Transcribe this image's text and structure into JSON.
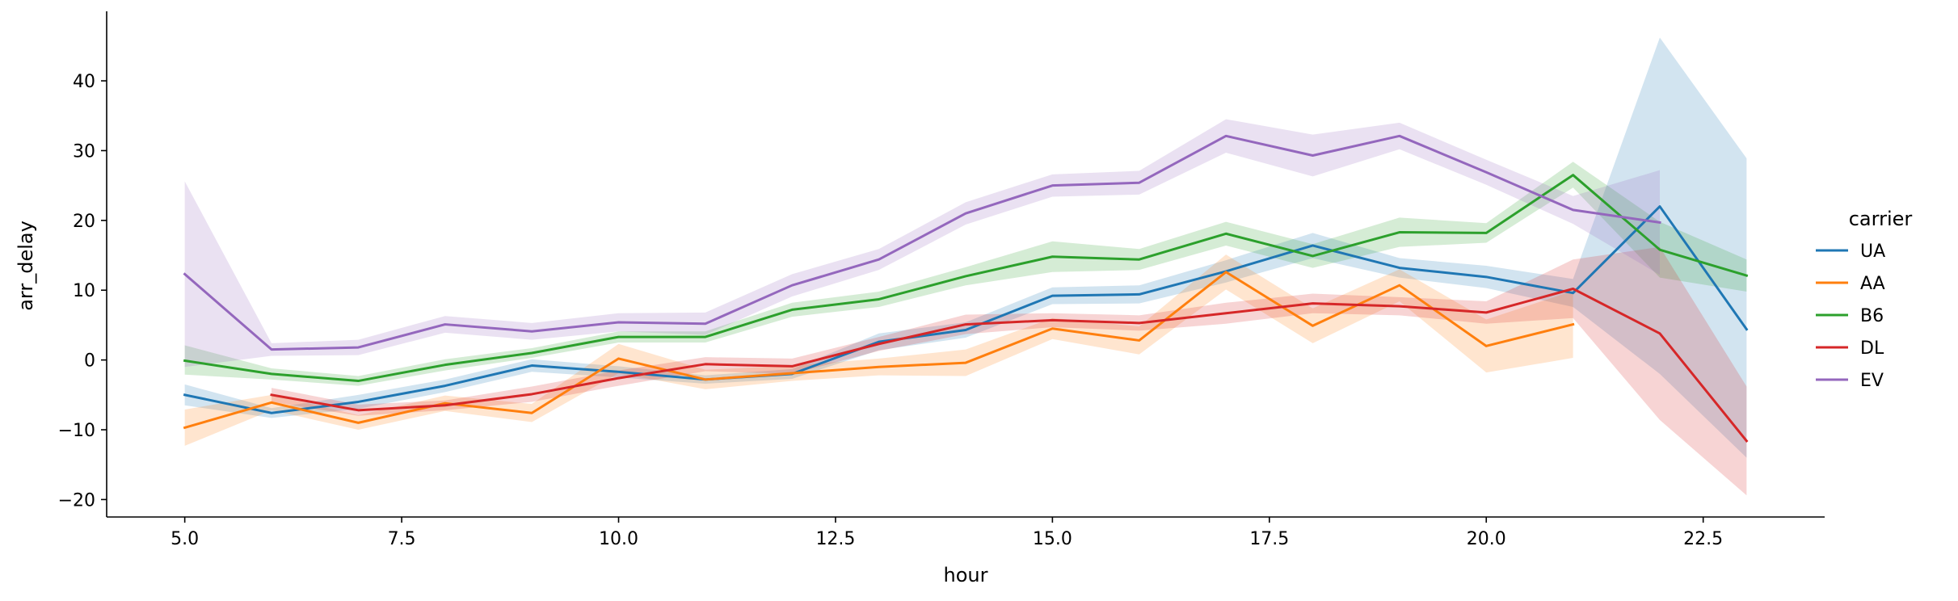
{
  "chart_data": {
    "type": "line",
    "xlabel": "hour",
    "ylabel": "arr_delay",
    "xlim": [
      4.1,
      23.9
    ],
    "ylim": [
      -22.5,
      49.5
    ],
    "x_ticks": [
      5.0,
      7.5,
      10.0,
      12.5,
      15.0,
      17.5,
      20.0,
      22.5
    ],
    "x_tick_labels": [
      "5.0",
      "7.5",
      "10.0",
      "12.5",
      "15.0",
      "17.5",
      "20.0",
      "22.5"
    ],
    "y_ticks": [
      -20,
      -10,
      0,
      10,
      20,
      30,
      40
    ],
    "y_tick_labels": [
      "−20",
      "−10",
      "0",
      "10",
      "20",
      "30",
      "40"
    ],
    "grid": false,
    "legend": {
      "title": "carrier",
      "placement": "right"
    },
    "series": [
      {
        "name": "UA",
        "color": "#1f77b4",
        "x": [
          5,
          6,
          7,
          8,
          9,
          10,
          11,
          12,
          13,
          14,
          15,
          16,
          17,
          18,
          19,
          20,
          21,
          22,
          23
        ],
        "y": [
          -5,
          -7.6,
          -6,
          -3.7,
          -0.8,
          -1.7,
          -2.8,
          -2,
          2.6,
          4.3,
          9.2,
          9.4,
          12.7,
          16.4,
          13.2,
          11.9,
          9.6,
          22,
          4.4
        ],
        "lower": [
          -6.5,
          -8.3,
          -7.0,
          -4.6,
          -1.7,
          -2.5,
          -3.4,
          -2.7,
          1.4,
          3.2,
          8.0,
          8.1,
          11.1,
          14.6,
          11.8,
          10.3,
          7.6,
          -2.0,
          -14.0
        ],
        "upper": [
          -3.5,
          -6.9,
          -5.0,
          -2.8,
          0.1,
          -0.9,
          -2.2,
          -1.3,
          3.8,
          5.4,
          10.4,
          10.7,
          14.3,
          18.2,
          14.6,
          13.5,
          11.6,
          46.2,
          28.9
        ]
      },
      {
        "name": "AA",
        "color": "#ff7f0e",
        "x": [
          5,
          6,
          7,
          8,
          9,
          10,
          11,
          12,
          13,
          14,
          15,
          16,
          17,
          18,
          19,
          20,
          21
        ],
        "y": [
          -9.7,
          -6.1,
          -9.0,
          -6.2,
          -7.6,
          0.2,
          -2.8,
          -1.9,
          -1.0,
          -0.4,
          4.5,
          2.8,
          12.6,
          4.9,
          10.7,
          2.0,
          5.1
        ],
        "lower": [
          -12.3,
          -7.2,
          -10.0,
          -7.3,
          -8.9,
          -1.9,
          -4.2,
          -3.0,
          -2.2,
          -2.3,
          3.0,
          0.8,
          10.1,
          2.4,
          8.4,
          -1.8,
          0.3
        ],
        "upper": [
          -7.1,
          -5.0,
          -7.9,
          -5.1,
          -6.3,
          2.3,
          -1.4,
          -0.8,
          0.2,
          1.5,
          6.0,
          4.8,
          15.1,
          7.4,
          13.0,
          5.8,
          9.9
        ]
      },
      {
        "name": "B6",
        "color": "#2ca02c",
        "x": [
          5,
          6,
          7,
          8,
          9,
          10,
          11,
          12,
          13,
          14,
          15,
          16,
          17,
          18,
          19,
          20,
          21,
          22,
          23
        ],
        "y": [
          -0.1,
          -2.0,
          -3.0,
          -0.7,
          1.0,
          3.3,
          3.3,
          7.2,
          8.7,
          12.0,
          14.8,
          14.4,
          18.1,
          14.9,
          18.3,
          18.2,
          26.5,
          15.8,
          12.1
        ],
        "lower": [
          -2.1,
          -2.8,
          -3.7,
          -1.5,
          0.3,
          2.5,
          2.5,
          6.2,
          7.6,
          10.7,
          12.6,
          12.9,
          16.4,
          13.2,
          16.2,
          16.8,
          24.7,
          11.8,
          9.8
        ],
        "upper": [
          2.1,
          -1.2,
          -2.3,
          0.1,
          1.7,
          4.1,
          4.1,
          8.2,
          9.8,
          13.3,
          17.0,
          15.9,
          19.8,
          16.6,
          20.4,
          19.6,
          28.4,
          19.8,
          14.4
        ]
      },
      {
        "name": "DL",
        "color": "#d62728",
        "x": [
          6,
          7,
          8,
          9,
          10,
          11,
          12,
          13,
          14,
          15,
          16,
          17,
          18,
          19,
          20,
          21,
          22,
          23
        ],
        "y": [
          -5.0,
          -7.2,
          -6.5,
          -4.9,
          -2.6,
          -0.6,
          -0.9,
          2.3,
          5.1,
          5.7,
          5.3,
          6.7,
          8.1,
          7.7,
          6.8,
          10.2,
          3.8,
          -11.6
        ],
        "lower": [
          -6.0,
          -8.0,
          -7.2,
          -6.0,
          -3.7,
          -1.6,
          -2.0,
          1.3,
          3.7,
          4.7,
          4.2,
          5.2,
          6.7,
          6.4,
          5.2,
          6.0,
          -8.6,
          -19.4
        ],
        "upper": [
          -4.0,
          -6.4,
          -5.8,
          -3.8,
          -1.5,
          0.4,
          0.2,
          3.3,
          6.5,
          6.7,
          6.4,
          8.2,
          9.5,
          9.0,
          8.4,
          14.4,
          16.2,
          -3.8
        ]
      },
      {
        "name": "EV",
        "color": "#9467bd",
        "x": [
          5,
          6,
          7,
          8,
          9,
          10,
          11,
          12,
          13,
          14,
          15,
          16,
          17,
          18,
          19,
          20,
          21,
          22
        ],
        "y": [
          12.3,
          1.5,
          1.8,
          5.1,
          4.1,
          5.4,
          5.2,
          10.7,
          14.4,
          21.0,
          25.0,
          25.4,
          32.1,
          29.3,
          32.1,
          26.9,
          21.5,
          19.7
        ],
        "lower": [
          -1.0,
          0.6,
          0.7,
          3.9,
          2.9,
          4.1,
          3.6,
          9.1,
          12.9,
          19.4,
          23.4,
          23.7,
          29.7,
          26.3,
          30.2,
          25.1,
          19.5,
          12.2
        ],
        "upper": [
          25.6,
          2.4,
          2.9,
          6.3,
          5.3,
          6.7,
          6.8,
          12.3,
          15.9,
          22.6,
          26.6,
          27.1,
          34.5,
          32.3,
          34.0,
          28.7,
          23.5,
          27.2
        ]
      }
    ]
  }
}
